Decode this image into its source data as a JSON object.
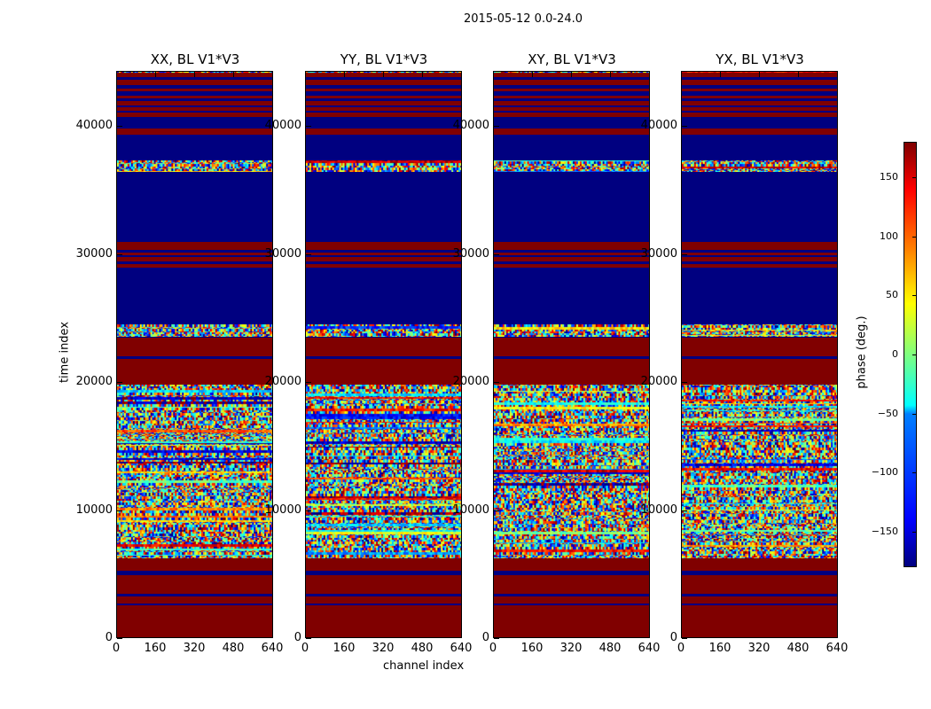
{
  "chart_data": {
    "type": "heatmap",
    "title": "2015-05-12 0.0-24.0",
    "xlabel": "channel index",
    "ylabel": "time index",
    "xlim": [
      0,
      640
    ],
    "ylim": [
      0,
      44300
    ],
    "xticks": [
      "0",
      "160",
      "320",
      "480",
      "640"
    ],
    "yticks": [
      "0",
      "10000",
      "20000",
      "30000",
      "40000"
    ],
    "ytick_values": [
      0,
      10000,
      20000,
      30000,
      40000
    ],
    "xtick_values": [
      0,
      160,
      320,
      480,
      640
    ],
    "colorbar": {
      "label": "phase (deg.)",
      "range": [
        -180,
        180
      ],
      "ticks": [
        "150",
        "100",
        "50",
        "0",
        "−50",
        "−100",
        "−150"
      ],
      "tick_values": [
        150,
        100,
        50,
        0,
        -50,
        -100,
        -150
      ]
    },
    "panels": [
      {
        "title": "XX, BL V1*V3",
        "seed": 11
      },
      {
        "title": "YY, BL V1*V3",
        "seed": 23
      },
      {
        "title": "XY, BL V1*V3",
        "seed": 37
      },
      {
        "title": "YX, BL V1*V3",
        "seed": 51
      }
    ],
    "solid_bands": [
      {
        "start": 0,
        "end": 2600,
        "value": 180
      },
      {
        "start": 2600,
        "end": 2800,
        "value": -180
      },
      {
        "start": 2800,
        "end": 3300,
        "value": 180
      },
      {
        "start": 3300,
        "end": 3500,
        "value": -180
      },
      {
        "start": 3500,
        "end": 5000,
        "value": 180
      },
      {
        "start": 5000,
        "end": 5300,
        "value": -180
      },
      {
        "start": 5300,
        "end": 6300,
        "value": 180
      },
      {
        "start": 19900,
        "end": 21900,
        "value": 180
      },
      {
        "start": 21900,
        "end": 22050,
        "value": -180
      },
      {
        "start": 22050,
        "end": 23500,
        "value": 180
      },
      {
        "start": 23500,
        "end": 23650,
        "value": -180
      },
      {
        "start": 24600,
        "end": 29000,
        "value": -180
      },
      {
        "start": 29000,
        "end": 29300,
        "value": 180
      },
      {
        "start": 29300,
        "end": 29500,
        "value": -180
      },
      {
        "start": 29500,
        "end": 29800,
        "value": 180
      },
      {
        "start": 29800,
        "end": 30000,
        "value": -180
      },
      {
        "start": 30000,
        "end": 30200,
        "value": 180
      },
      {
        "start": 30200,
        "end": 30400,
        "value": -180
      },
      {
        "start": 30400,
        "end": 31000,
        "value": 180
      },
      {
        "start": 31000,
        "end": 36500,
        "value": -180
      },
      {
        "start": 37400,
        "end": 39400,
        "value": -180
      },
      {
        "start": 39400,
        "end": 39900,
        "value": 180
      },
      {
        "start": 39900,
        "end": 40800,
        "value": -180
      },
      {
        "start": 40800,
        "end": 41100,
        "value": 180
      },
      {
        "start": 41100,
        "end": 41250,
        "value": -180
      },
      {
        "start": 41250,
        "end": 41500,
        "value": 180
      },
      {
        "start": 41500,
        "end": 41700,
        "value": -180
      },
      {
        "start": 41700,
        "end": 42000,
        "value": 180
      },
      {
        "start": 42000,
        "end": 42200,
        "value": -180
      },
      {
        "start": 42200,
        "end": 42450,
        "value": 180
      },
      {
        "start": 42450,
        "end": 42800,
        "value": -180
      },
      {
        "start": 42800,
        "end": 43000,
        "value": 180
      },
      {
        "start": 43000,
        "end": 43250,
        "value": -180
      },
      {
        "start": 43250,
        "end": 43700,
        "value": 180
      },
      {
        "start": 43700,
        "end": 43850,
        "value": -180
      },
      {
        "start": 43850,
        "end": 44200,
        "value": 180
      }
    ],
    "noise_bands": [
      {
        "start": 6300,
        "end": 19900
      },
      {
        "start": 23650,
        "end": 24600
      },
      {
        "start": 36500,
        "end": 37400
      },
      {
        "start": 44200,
        "end": 44300
      }
    ]
  }
}
